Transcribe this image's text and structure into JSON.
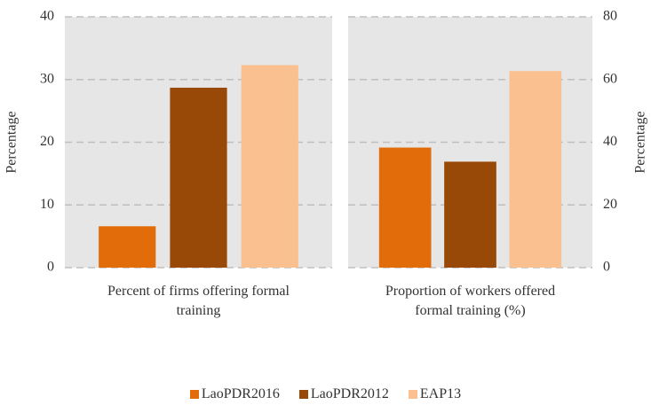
{
  "chart_data": [
    {
      "type": "bar",
      "categories": [
        "Percent of firms offering formal training"
      ],
      "ylabel": "Percentage",
      "series": [
        {
          "name": "LaoPDR2016",
          "color": "#e36c0a",
          "values": [
            6.6
          ]
        },
        {
          "name": "LaoPDR2012",
          "color": "#984807",
          "values": [
            28.7
          ]
        },
        {
          "name": "EAP13",
          "color": "#fac090",
          "values": [
            32.3
          ]
        }
      ],
      "ylim": [
        0,
        40
      ],
      "yticks": [
        0,
        10,
        20,
        30,
        40
      ],
      "grid": true,
      "axis_side": "left"
    },
    {
      "type": "bar",
      "categories": [
        "Proportion of workers offered formal training (%)"
      ],
      "ylabel": "Percentage",
      "series": [
        {
          "name": "LaoPDR2016",
          "color": "#e36c0a",
          "values": [
            38.3
          ]
        },
        {
          "name": "LaoPDR2012",
          "color": "#984807",
          "values": [
            33.8
          ]
        },
        {
          "name": "EAP13",
          "color": "#fac090",
          "values": [
            62.7
          ]
        }
      ],
      "ylim": [
        0,
        80
      ],
      "yticks": [
        0,
        20,
        40,
        60,
        80
      ],
      "grid": true,
      "axis_side": "right"
    }
  ]
}
